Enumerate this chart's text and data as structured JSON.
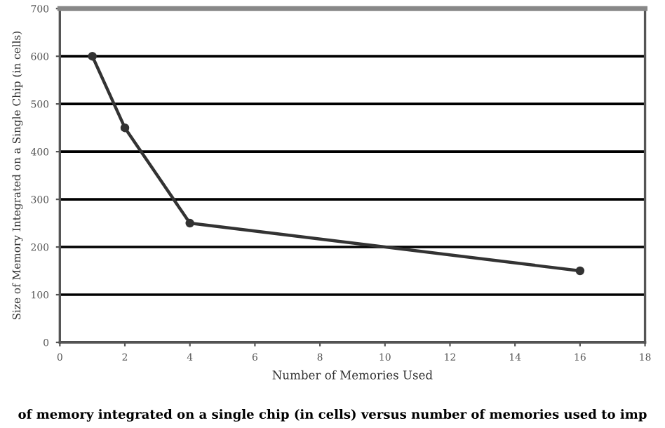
{
  "chart_data": {
    "type": "line",
    "xlabel": "Number of Memories Used",
    "ylabel": "Size of Memory Integrated on a Single Chip (in cells)",
    "x": [
      1,
      2,
      4,
      16
    ],
    "series": [
      {
        "color": "#333333",
        "values": [
          600,
          450,
          250,
          150
        ]
      }
    ],
    "xlim": [
      0,
      18
    ],
    "xticks": [
      0,
      2,
      4,
      6,
      8,
      10,
      12,
      14,
      16,
      18
    ],
    "ylim": [
      0,
      700
    ],
    "yticks": [
      0,
      100,
      200,
      300,
      400,
      500,
      600,
      700
    ],
    "grid": "y",
    "marker": "circle",
    "line_style": "solid",
    "legend": false,
    "annotations": [
      "of memory integrated on a single chip (in cells) versus number of memories used to imp"
    ]
  }
}
